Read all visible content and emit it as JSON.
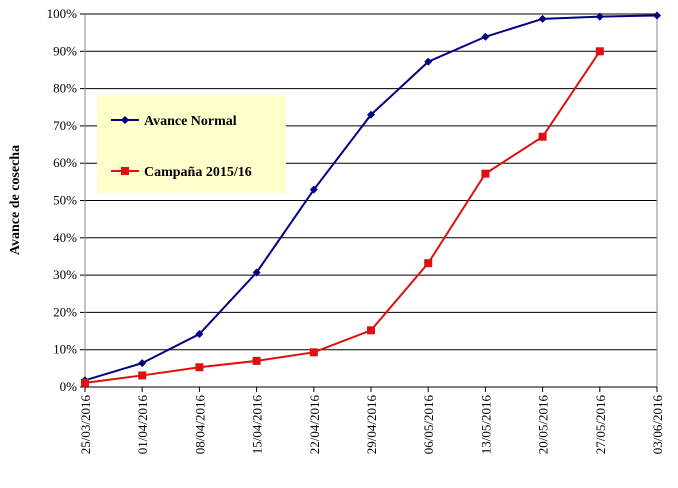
{
  "chart_data": {
    "type": "line",
    "title": "",
    "xlabel": "",
    "ylabel": "Avance de cosecha",
    "ylim": [
      0,
      100
    ],
    "yticks": [
      "0%",
      "10%",
      "20%",
      "30%",
      "40%",
      "50%",
      "60%",
      "70%",
      "80%",
      "90%",
      "100%"
    ],
    "grid": true,
    "legend_position": "upper-left",
    "categories": [
      "25/03/2016",
      "01/04/2016",
      "08/04/2016",
      "15/04/2016",
      "22/04/2016",
      "29/04/2016",
      "06/05/2016",
      "13/05/2016",
      "20/05/2016",
      "27/05/2016",
      "03/06/2016"
    ],
    "series": [
      {
        "name": "Avance Normal",
        "color": "#000080",
        "marker": "diamond",
        "values": [
          1.8,
          6.4,
          14.2,
          30.7,
          52.9,
          73.0,
          87.2,
          93.9,
          98.7,
          99.3,
          99.6
        ]
      },
      {
        "name": "Campaña 2015/16",
        "color": "#e01010",
        "marker": "square",
        "values": [
          1.1,
          3.1,
          5.3,
          7.0,
          9.3,
          15.2,
          33.2,
          57.2,
          67.1,
          90.0,
          null
        ]
      }
    ]
  }
}
